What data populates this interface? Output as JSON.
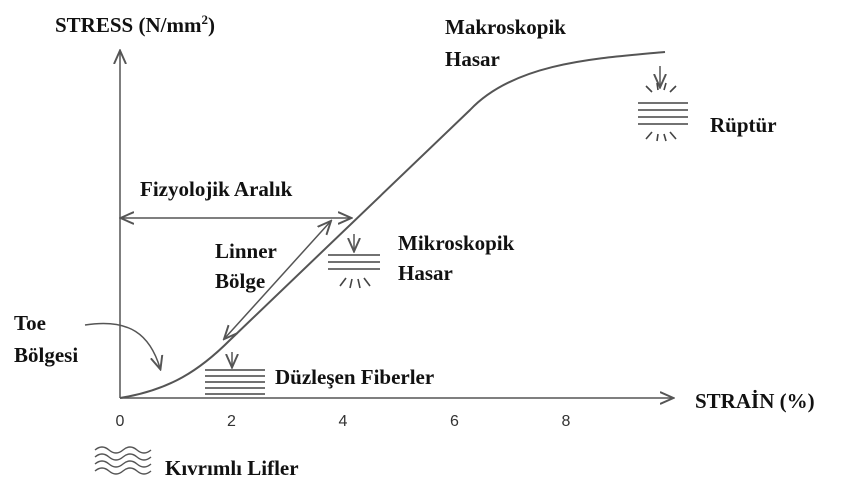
{
  "y_label": {
    "text": "STRESS (N/mm",
    "sup": "2",
    "end": ")"
  },
  "x_label": "STRAİN (%)",
  "x_ticks": [
    "0",
    "2",
    "4",
    "6",
    "8"
  ],
  "labels": {
    "macro": [
      "Makroskopik",
      "Hasar"
    ],
    "rupture": "Rüptür",
    "physio": "Fizyolojik Aralık",
    "linear": [
      "Linner",
      "Bölge"
    ],
    "micro": [
      "Mikroskopik",
      "Hasar"
    ],
    "toe": [
      "Toe",
      "Bölgesi"
    ],
    "straight": "Düzleşen Fiberler",
    "crimp": "Kıvrımlı Lifler"
  }
}
